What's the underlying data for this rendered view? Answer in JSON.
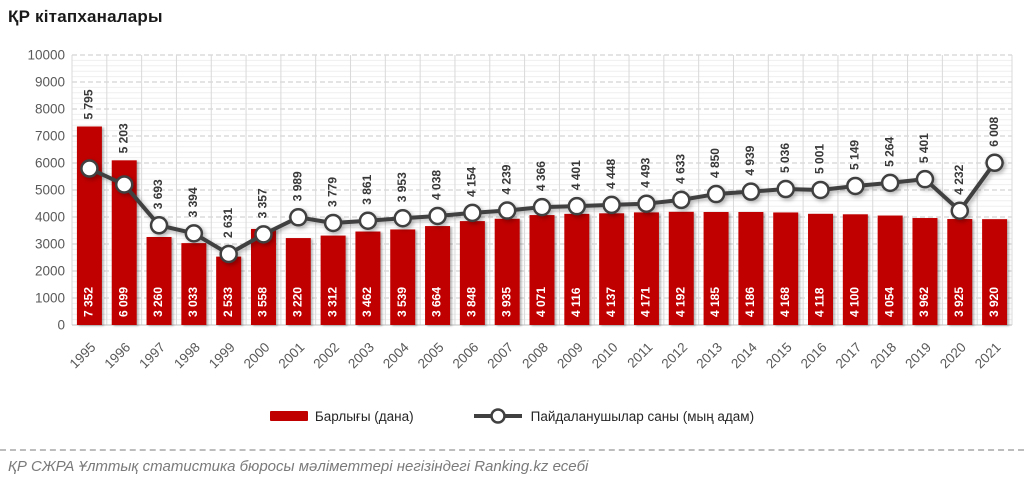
{
  "title": "ҚР кітапханалары",
  "legend": {
    "bar_label": "Барлығы (дана)",
    "line_label": "Пайдаланушылар саны (мың адам)"
  },
  "footer": "ҚР СЖРА Ұлттық статистика бюросы мәліметтері негізіндегі Ranking.kz есебі",
  "colors": {
    "bar": "#c00000",
    "line": "#404040",
    "marker_fill": "#ffffff",
    "bar_label": "#ffffff",
    "line_label": "#383838",
    "axis_label": "#595959",
    "grid_major": "#c9c9c9",
    "grid_minor": "#efefef",
    "grid_vertical": "#d9d9d9"
  },
  "chart_data": {
    "type": "bar",
    "subtype": "combo-bar-line",
    "title": "ҚР кітапханалары",
    "xlabel": "",
    "ylabel": "",
    "ylim": [
      0,
      10000
    ],
    "y_ticks": [
      0,
      1000,
      2000,
      3000,
      4000,
      5000,
      6000,
      7000,
      8000,
      9000,
      10000
    ],
    "y_minor_step": 200,
    "grid": true,
    "legend_position": "bottom",
    "categories": [
      "1995",
      "1996",
      "1997",
      "1998",
      "1999",
      "2000",
      "2001",
      "2002",
      "2003",
      "2004",
      "2005",
      "2006",
      "2007",
      "2008",
      "2009",
      "2010",
      "2011",
      "2012",
      "2013",
      "2014",
      "2015",
      "2016",
      "2017",
      "2018",
      "2019",
      "2020",
      "2021"
    ],
    "series": [
      {
        "name": "Барлығы (дана)",
        "type": "bar",
        "values": [
          7352,
          6099,
          3260,
          3033,
          2533,
          3558,
          3220,
          3312,
          3462,
          3539,
          3664,
          3848,
          3935,
          4071,
          4116,
          4137,
          4171,
          4192,
          4185,
          4186,
          4168,
          4118,
          4100,
          4054,
          3962,
          3925,
          3920
        ]
      },
      {
        "name": "Пайдаланушылар саны (мың адам)",
        "type": "line",
        "values": [
          5795,
          5203,
          3693,
          3394,
          2631,
          3357,
          3989,
          3779,
          3861,
          3953,
          4038,
          4154,
          4239,
          4366,
          4401,
          4448,
          4493,
          4633,
          4850,
          4939,
          5036,
          5001,
          5149,
          5264,
          5401,
          4232,
          6008
        ]
      }
    ]
  }
}
